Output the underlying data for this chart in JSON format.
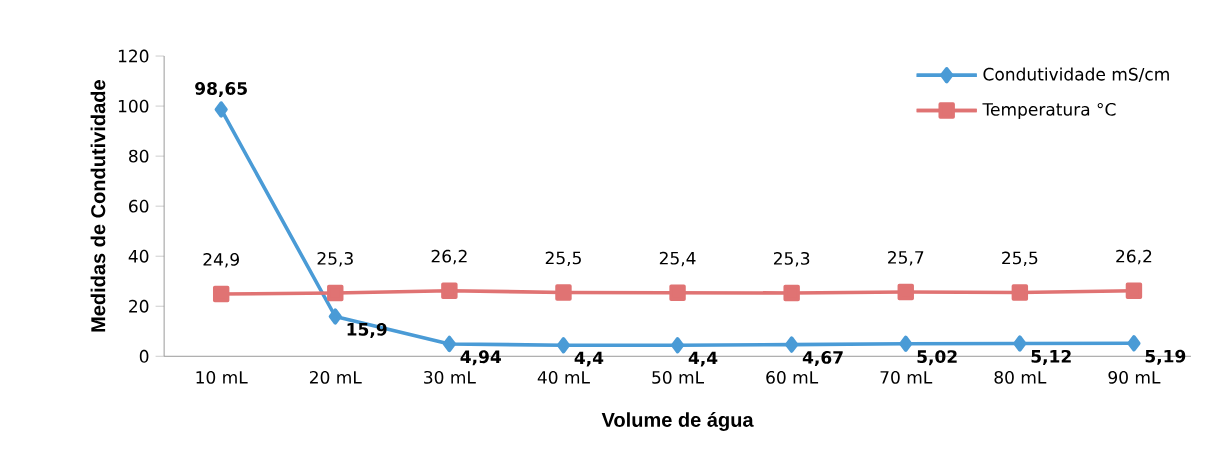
{
  "chart_data": {
    "type": "line",
    "xlabel": "Volume de água",
    "ylabel": "Medidas de Condutividade",
    "categories": [
      "10 mL",
      "20 mL",
      "30 mL",
      "40 mL",
      "50 mL",
      "60 mL",
      "70 mL",
      "80 mL",
      "90 mL"
    ],
    "series": [
      {
        "name": "Condutividade mS/cm",
        "color": "#4a9bd6",
        "marker": "diamond",
        "values": [
          98.65,
          15.9,
          4.94,
          4.4,
          4.4,
          4.67,
          5.02,
          5.12,
          5.19
        ],
        "value_labels": [
          "98,65",
          "15,9",
          "4,94",
          "4,4",
          "4,4",
          "4,67",
          "5,02",
          "5,12",
          "5,19"
        ]
      },
      {
        "name": "Temperatura °C",
        "color": "#e07373",
        "marker": "square",
        "values": [
          24.9,
          25.3,
          26.2,
          25.5,
          25.4,
          25.3,
          25.7,
          25.5,
          26.2
        ],
        "value_labels": [
          "24,9",
          "25,3",
          "26,2",
          "25,5",
          "25,4",
          "25,3",
          "25,7",
          "25,5",
          "26,2"
        ]
      }
    ],
    "ylim": [
      0,
      120
    ],
    "yticks": [
      0,
      20,
      40,
      60,
      80,
      100,
      120
    ],
    "grid": false,
    "legend": "top right"
  }
}
